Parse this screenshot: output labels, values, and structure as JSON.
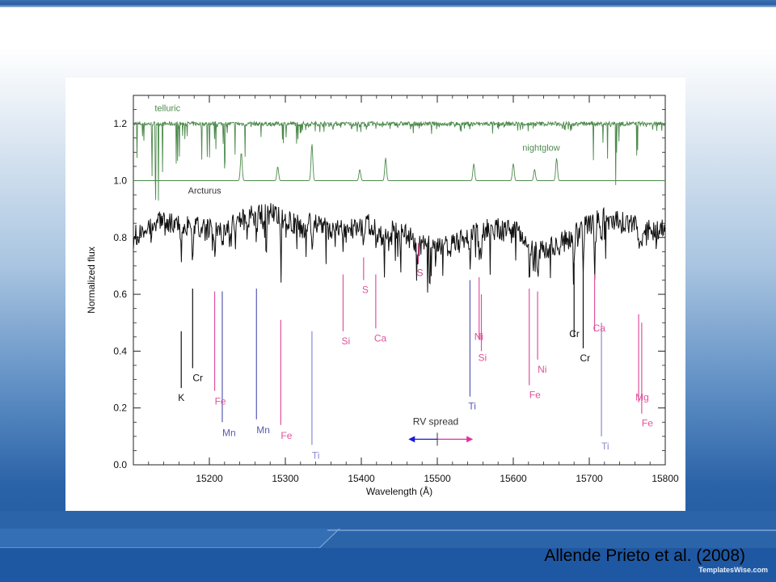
{
  "slide": {
    "caption": "Allende Prieto et al. (2008)",
    "brand": "TemplatesWise.com",
    "colors": {
      "accent_dark": "#1e56a0",
      "accent_light": "#a8c4e0"
    }
  },
  "chart_data": {
    "type": "line",
    "title": "",
    "xlabel": "Wavelength (Å)",
    "ylabel": "Normalized flux",
    "xlim": [
      15100,
      15800
    ],
    "ylim": [
      0.0,
      1.3
    ],
    "x_ticks": [
      15200,
      15300,
      15400,
      15500,
      15600,
      15700,
      15800
    ],
    "x_tick_labels": [
      "15200",
      "15300",
      "15400",
      "15500",
      "15600",
      "15700",
      "15800"
    ],
    "y_ticks": [
      0.0,
      0.2,
      0.4,
      0.6,
      0.8,
      1.0,
      1.2
    ],
    "y_tick_labels": [
      "0.0",
      "0.2",
      "0.4",
      "0.6",
      "0.8",
      "1.0",
      "1.2"
    ],
    "grid": false,
    "series": [
      {
        "name": "telluric",
        "color": "#4c8a4c",
        "baseline": 1.2
      },
      {
        "name": "nightglow",
        "color": "#4c8a4c",
        "baseline": 1.0,
        "peaks_x": [
          15242,
          15290,
          15335,
          15398,
          15432,
          15548,
          15600,
          15628,
          15657
        ]
      },
      {
        "name": "Arcturus",
        "color": "#111111",
        "baseline": 0.8
      }
    ],
    "line_markers": [
      {
        "label": "K",
        "x": 15163,
        "y_top": 0.47,
        "y_bottom": 0.27,
        "color": "#111111"
      },
      {
        "label": "Cr",
        "x": 15178,
        "y_top": 0.62,
        "y_bottom": 0.34,
        "color": "#111111"
      },
      {
        "label": "Fe",
        "x": 15207,
        "y_top": 0.61,
        "y_bottom": 0.26,
        "color": "#e0529c"
      },
      {
        "label": "Mn",
        "x": 15217,
        "y_top": 0.61,
        "y_bottom": 0.15,
        "color": "#5a5ab4"
      },
      {
        "label": "Mn",
        "x": 15262,
        "y_top": 0.62,
        "y_bottom": 0.16,
        "color": "#5a5ab4"
      },
      {
        "label": "Fe",
        "x": 15294,
        "y_top": 0.51,
        "y_bottom": 0.14,
        "color": "#e0529c"
      },
      {
        "label": "Ti",
        "x": 15335,
        "y_top": 0.47,
        "y_bottom": 0.07,
        "color": "#8a8ad0"
      },
      {
        "label": "Si",
        "x": 15376,
        "y_top": 0.67,
        "y_bottom": 0.47,
        "color": "#e0529c"
      },
      {
        "label": "S",
        "x": 15403,
        "y_top": 0.73,
        "y_bottom": 0.65,
        "color": "#e0529c"
      },
      {
        "label": "Ca",
        "x": 15419,
        "y_top": 0.67,
        "y_bottom": 0.48,
        "color": "#e0529c"
      },
      {
        "label": "S",
        "x": 15475,
        "y_top": 0.78,
        "y_bottom": 0.71,
        "color": "#d0408e"
      },
      {
        "label": "Ti",
        "x": 15543,
        "y_top": 0.65,
        "y_bottom": 0.24,
        "color": "#5a5ab4"
      },
      {
        "label": "Ni",
        "x": 15555,
        "y_top": 0.66,
        "y_bottom": 0.44,
        "color": "#e0529c"
      },
      {
        "label": "Si",
        "x": 15558,
        "y_top": 0.6,
        "y_bottom": 0.4,
        "color": "#e0529c"
      },
      {
        "label": "Fe",
        "x": 15621,
        "y_top": 0.62,
        "y_bottom": 0.28,
        "color": "#e0529c"
      },
      {
        "label": "Ni",
        "x": 15632,
        "y_top": 0.61,
        "y_bottom": 0.37,
        "color": "#e0529c"
      },
      {
        "label": "Cr",
        "x": 15680,
        "y_top": 0.71,
        "y_bottom": 0.45,
        "color": "#111111"
      },
      {
        "label": "Cr",
        "x": 15692,
        "y_top": 0.71,
        "y_bottom": 0.41,
        "color": "#111111"
      },
      {
        "label": "Ca",
        "x": 15707,
        "y_top": 0.67,
        "y_bottom": 0.47,
        "color": "#e0529c"
      },
      {
        "label": "Ti",
        "x": 15716,
        "y_top": 0.5,
        "y_bottom": 0.1,
        "color": "#8a8ad0"
      },
      {
        "label": "Mg",
        "x": 15765,
        "y_top": 0.53,
        "y_bottom": 0.22,
        "color": "#e0529c"
      },
      {
        "label": "Fe",
        "x": 15769,
        "y_top": 0.5,
        "y_bottom": 0.18,
        "color": "#e0529c"
      }
    ],
    "rv_spread": {
      "label": "RV spread",
      "x_from": 15462,
      "x_to": 15547,
      "x_mid": 15500,
      "y": 0.09
    }
  }
}
